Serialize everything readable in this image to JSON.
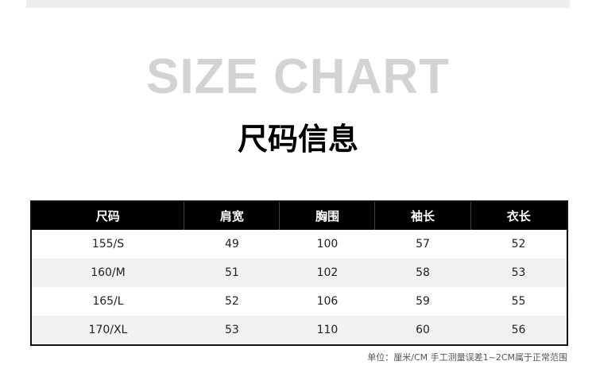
{
  "title_bg": "SIZE CHART",
  "title": "尺码信息",
  "table": {
    "headers": [
      "尺码",
      "肩宽",
      "胸围",
      "袖长",
      "衣长"
    ],
    "rows": [
      [
        "155/S",
        "49",
        "100",
        "57",
        "52"
      ],
      [
        "160/M",
        "51",
        "102",
        "58",
        "53"
      ],
      [
        "165/L",
        "52",
        "106",
        "59",
        "55"
      ],
      [
        "170/XL",
        "53",
        "110",
        "60",
        "56"
      ]
    ]
  },
  "note": "单位：厘米/CM 手工测量误差1~2CM属于正常范围"
}
